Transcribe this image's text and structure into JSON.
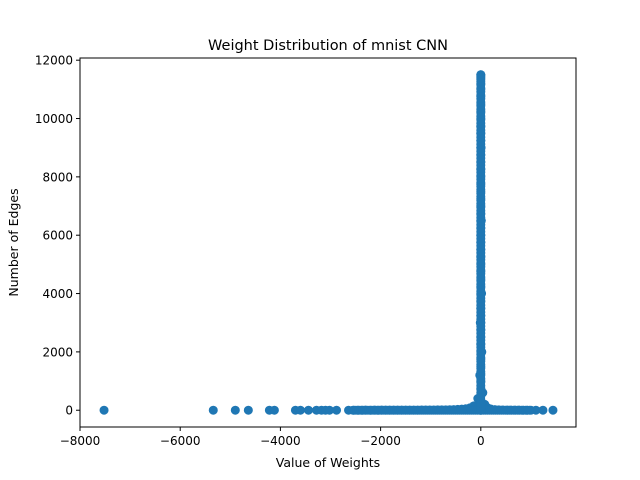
{
  "chart_data": {
    "type": "scatter",
    "title": "Weight Distribution of mnist CNN",
    "xlabel": "Value of Weights",
    "ylabel": "Number of Edges",
    "xlim": [
      -8000,
      1900
    ],
    "ylim": [
      -575,
      12075
    ],
    "xticks": [
      -8000,
      -6000,
      -4000,
      -2000,
      0
    ],
    "yticks": [
      0,
      2000,
      4000,
      6000,
      8000,
      10000,
      12000
    ],
    "xtick_labels": [
      "−8000",
      "−6000",
      "−4000",
      "−2000",
      "0"
    ],
    "ytick_labels": [
      "0",
      "2000",
      "4000",
      "6000",
      "8000",
      "10000",
      "12000"
    ],
    "grid": false,
    "marker_color": "#1f77b4",
    "series": [
      {
        "points": [
          [
            -7520,
            1
          ],
          [
            -5340,
            1
          ],
          [
            -4900,
            1
          ],
          [
            -4640,
            1
          ],
          [
            -4220,
            1
          ],
          [
            -4120,
            1
          ],
          [
            -3700,
            1
          ],
          [
            -3600,
            1
          ],
          [
            -3440,
            1
          ],
          [
            -3280,
            1
          ],
          [
            -3180,
            1
          ],
          [
            -3100,
            1
          ],
          [
            -3020,
            1
          ],
          [
            -2880,
            1
          ],
          [
            -2640,
            1
          ],
          [
            -2540,
            1
          ],
          [
            -2450,
            1
          ],
          [
            -2370,
            1
          ],
          [
            -2300,
            2
          ],
          [
            -2200,
            1
          ],
          [
            -2120,
            2
          ],
          [
            -2050,
            1
          ],
          [
            -1980,
            2
          ],
          [
            -1900,
            2
          ],
          [
            -1820,
            3
          ],
          [
            -1740,
            2
          ],
          [
            -1660,
            3
          ],
          [
            -1580,
            3
          ],
          [
            -1500,
            4
          ],
          [
            -1420,
            4
          ],
          [
            -1340,
            5
          ],
          [
            -1260,
            5
          ],
          [
            -1180,
            6
          ],
          [
            -1100,
            6
          ],
          [
            -1020,
            8
          ],
          [
            -940,
            9
          ],
          [
            -860,
            10
          ],
          [
            -780,
            12
          ],
          [
            -700,
            14
          ],
          [
            -620,
            18
          ],
          [
            -540,
            22
          ],
          [
            -460,
            28
          ],
          [
            -380,
            36
          ],
          [
            -300,
            50
          ],
          [
            -220,
            80
          ],
          [
            -140,
            150
          ],
          [
            -60,
            400
          ],
          [
            -20,
            1200
          ],
          [
            -10,
            3000
          ],
          [
            0,
            11500
          ],
          [
            5,
            9000
          ],
          [
            10,
            6500
          ],
          [
            15,
            4000
          ],
          [
            20,
            2000
          ],
          [
            40,
            600
          ],
          [
            80,
            200
          ],
          [
            140,
            80
          ],
          [
            200,
            40
          ],
          [
            280,
            20
          ],
          [
            360,
            10
          ],
          [
            440,
            6
          ],
          [
            520,
            4
          ],
          [
            600,
            3
          ],
          [
            680,
            2
          ],
          [
            760,
            2
          ],
          [
            840,
            1
          ],
          [
            920,
            1
          ],
          [
            1000,
            1
          ],
          [
            1100,
            1
          ],
          [
            1240,
            1
          ],
          [
            1440,
            1
          ]
        ],
        "central_column": {
          "x": 0,
          "counts": [
            0,
            250,
            500,
            750,
            1000,
            1250,
            1500,
            1750,
            2000,
            2250,
            2500,
            2750,
            3000,
            3250,
            3500,
            3750,
            4000,
            4250,
            4500,
            4750,
            5000,
            5250,
            5500,
            5750,
            6000,
            6250,
            6500,
            6750,
            7000,
            7250,
            7500,
            7750,
            8000,
            8250,
            8500,
            8750,
            9000,
            9250,
            9500,
            9750,
            10000,
            10250,
            10500,
            10750,
            11000,
            11200,
            11350,
            11450,
            11500
          ]
        }
      }
    ]
  }
}
